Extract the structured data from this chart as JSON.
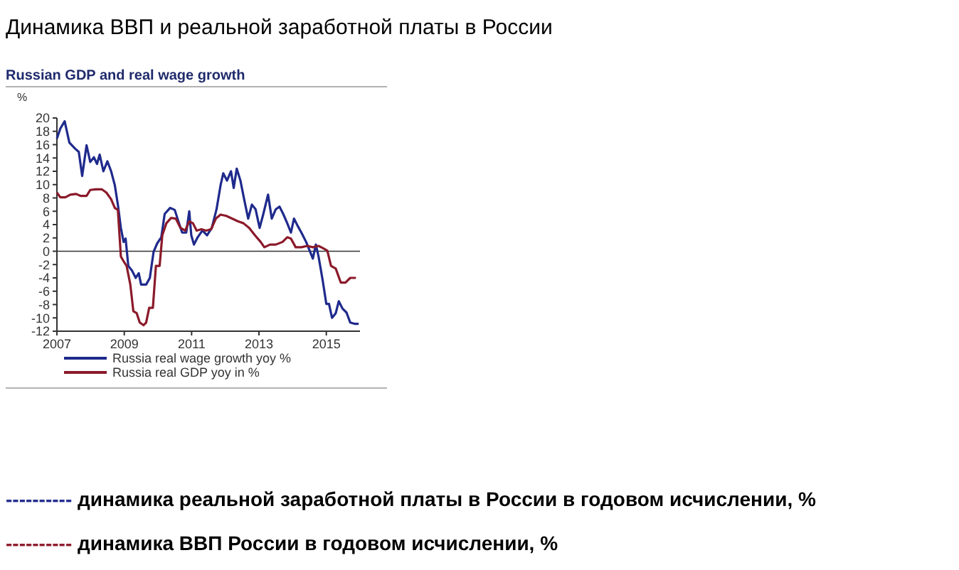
{
  "chart_data": {
    "type": "line",
    "title": "Динамика ВВП и реальной заработной платы в России",
    "subtitle": "Russian GDP and real wage growth",
    "ylabel": "%",
    "xlim": [
      2007,
      2016
    ],
    "xticks": [
      2007,
      2009,
      2011,
      2013,
      2015
    ],
    "ylim": [
      -12,
      20
    ],
    "yticks": [
      -12,
      -10,
      -8,
      -6,
      -4,
      -2,
      0,
      2,
      4,
      6,
      8,
      10,
      12,
      14,
      16,
      18,
      20
    ],
    "grid": false,
    "legend": "bottom",
    "ref_lines": [
      {
        "axis": "y",
        "value": 0,
        "color": "#333333"
      }
    ],
    "annotations": [
      "---------- динамика реальной заработной платы в России в годовом исчислении, %",
      "---------- динамика ВВП России в годовом исчислении, %"
    ],
    "series": [
      {
        "name": "Russia real wage growth yoy %",
        "color": "#1f2a8c",
        "x": [
          2007,
          2007.1,
          2007.23,
          2007.37,
          2007.54,
          2007.65,
          2007.75,
          2007.88,
          2007.99,
          2008.1,
          2008.19,
          2008.27,
          2008.38,
          2008.5,
          2008.61,
          2008.72,
          2008.81,
          2008.9,
          2008.98,
          2009.04,
          2009.12,
          2009.23,
          2009.34,
          2009.43,
          2009.5,
          2009.65,
          2009.76,
          2009.87,
          2009.98,
          2010.1,
          2010.2,
          2010.36,
          2010.5,
          2010.6,
          2010.72,
          2010.84,
          2010.93,
          2010.99,
          2011.07,
          2011.18,
          2011.32,
          2011.46,
          2011.6,
          2011.74,
          2011.86,
          2011.94,
          2012.05,
          2012.17,
          2012.25,
          2012.34,
          2012.45,
          2012.56,
          2012.68,
          2012.79,
          2012.9,
          2013.02,
          2013.13,
          2013.27,
          2013.38,
          2013.5,
          2013.61,
          2013.72,
          2013.84,
          2013.95,
          2014.04,
          2014.15,
          2014.26,
          2014.4,
          2014.52,
          2014.6,
          2014.69,
          2014.77,
          2014.89,
          2015,
          2015.08,
          2015.17,
          2015.28,
          2015.37,
          2015.48,
          2015.6,
          2015.71,
          2015.85,
          2015.96
        ],
        "values": [
          16.9,
          18.4,
          19.5,
          16.3,
          15.4,
          14.9,
          11.3,
          15.9,
          13.4,
          14.1,
          13.1,
          14.5,
          12,
          13.5,
          12,
          9.9,
          7,
          3.5,
          1.4,
          1.9,
          -2.2,
          -2.9,
          -4,
          -3.3,
          -5,
          -5,
          -4,
          -0.1,
          1.2,
          2.1,
          5.6,
          6.5,
          6.2,
          4.6,
          2.8,
          2.8,
          6,
          2.4,
          1,
          2.1,
          3.1,
          2.4,
          3.5,
          6.3,
          9.9,
          11.7,
          10.6,
          12,
          9.5,
          12.4,
          10.6,
          7.8,
          4.9,
          7,
          6.3,
          3.5,
          5.6,
          8.5,
          4.9,
          6.3,
          6.7,
          5.6,
          4.2,
          2.8,
          4.9,
          3.8,
          2.8,
          1.4,
          -0.1,
          -1.1,
          1,
          -0.8,
          -4.3,
          -7.9,
          -7.9,
          -10,
          -9.3,
          -7.5,
          -8.6,
          -9.2,
          -10.7,
          -10.9,
          -10.9
        ]
      },
      {
        "name": "Russia real GDP yoy in %",
        "color": "#8b1a2a",
        "x": [
          2007,
          2007.1,
          2007.25,
          2007.4,
          2007.57,
          2007.71,
          2007.88,
          2007.99,
          2008.16,
          2008.33,
          2008.47,
          2008.61,
          2008.72,
          2008.81,
          2008.9,
          2008.98,
          2009.07,
          2009.18,
          2009.27,
          2009.37,
          2009.46,
          2009.57,
          2009.65,
          2009.74,
          2009.85,
          2009.94,
          2010.05,
          2010.13,
          2010.25,
          2010.39,
          2010.53,
          2010.67,
          2010.81,
          2010.93,
          2011.04,
          2011.15,
          2011.29,
          2011.43,
          2011.58,
          2011.72,
          2011.86,
          2012.03,
          2012.2,
          2012.37,
          2012.54,
          2012.71,
          2012.88,
          2013.05,
          2013.16,
          2013.33,
          2013.5,
          2013.7,
          2013.84,
          2013.95,
          2014.09,
          2014.26,
          2014.43,
          2014.6,
          2014.77,
          2014.89,
          2015.03,
          2015.14,
          2015.28,
          2015.43,
          2015.57,
          2015.71,
          2015.88
        ],
        "values": [
          8.8,
          8.1,
          8.1,
          8.5,
          8.6,
          8.3,
          8.3,
          9.2,
          9.3,
          9.3,
          8.8,
          7.8,
          6.5,
          6.2,
          -0.8,
          -1.5,
          -2.2,
          -5,
          -9,
          -9.3,
          -10.7,
          -11.1,
          -10.7,
          -8.5,
          -8.5,
          -2.2,
          -2.2,
          2.4,
          4.2,
          5,
          4.9,
          3.5,
          3.1,
          4.5,
          4.2,
          3.1,
          3.3,
          3.1,
          3.3,
          4.9,
          5.5,
          5.3,
          4.9,
          4.5,
          4.2,
          3.5,
          2.4,
          1.4,
          0.6,
          1,
          1,
          1.4,
          2.1,
          1.9,
          0.6,
          0.6,
          0.8,
          0.6,
          0.8,
          0.5,
          0.1,
          -2.2,
          -2.6,
          -4.7,
          -4.7,
          -4,
          -4
        ]
      }
    ]
  }
}
